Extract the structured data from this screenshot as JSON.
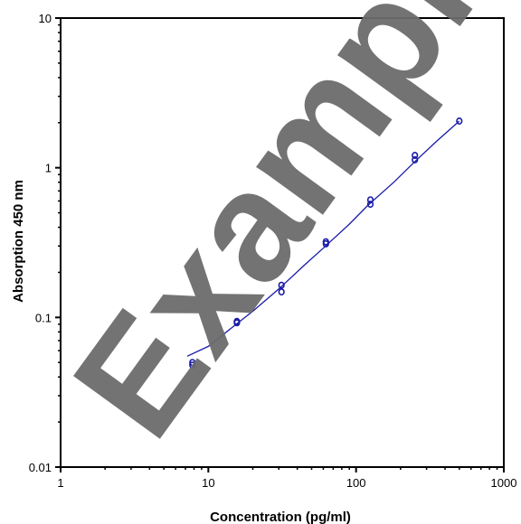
{
  "chart_data": {
    "type": "scatter",
    "xlabel": "Concentration (pg/ml)",
    "ylabel": "Absorption 450 nm",
    "x_scale": "log",
    "y_scale": "log",
    "xlim": [
      1,
      1000
    ],
    "ylim": [
      0.01,
      10
    ],
    "x_ticks": [
      "1",
      "10",
      "100",
      "1000"
    ],
    "y_ticks": [
      "0.01",
      "0.1",
      "1",
      "10"
    ],
    "grid": false,
    "series": [
      {
        "color": "#1a1aa8",
        "marker": "circle-open",
        "x": [
          7.8,
          7.8,
          15.6,
          15.6,
          31.25,
          31.25,
          62.5,
          62.5,
          125,
          125,
          250,
          250,
          500
        ],
        "y": [
          0.048,
          0.05,
          0.092,
          0.094,
          0.148,
          0.164,
          0.31,
          0.32,
          0.57,
          0.61,
          1.13,
          1.21,
          2.05
        ]
      }
    ],
    "fit_curve": {
      "color": "#1a1aa8",
      "x": [
        7.2,
        10,
        15,
        20,
        30,
        45,
        60,
        90,
        120,
        180,
        250,
        350,
        500
      ],
      "y": [
        0.055,
        0.064,
        0.088,
        0.11,
        0.155,
        0.225,
        0.29,
        0.42,
        0.56,
        0.8,
        1.1,
        1.5,
        2.05
      ]
    },
    "watermark": "Example"
  }
}
